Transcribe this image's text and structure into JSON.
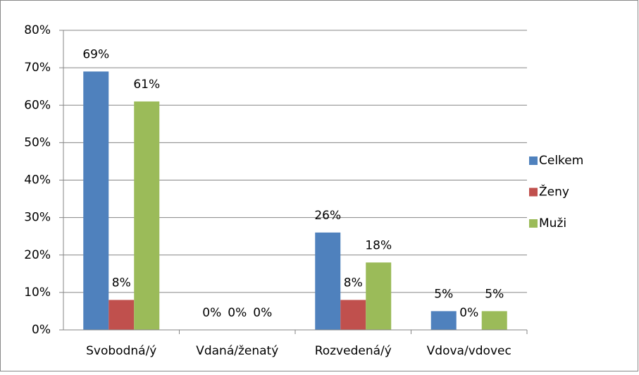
{
  "chart_data": {
    "type": "bar",
    "categories": [
      "Svobodná/ý",
      "Vdaná/ženatý",
      "Rozvedená/ý",
      "Vdova/vdovec"
    ],
    "series": [
      {
        "name": "Celkem",
        "color": "#4f81bd",
        "values": [
          69,
          0,
          26,
          5
        ],
        "value_labels": [
          "69%",
          "0%",
          "26%",
          "5%"
        ]
      },
      {
        "name": "Ženy",
        "color": "#c0504d",
        "values": [
          8,
          0,
          8,
          0
        ],
        "value_labels": [
          "8%",
          "0%",
          "8%",
          "0%"
        ]
      },
      {
        "name": "Muži",
        "color": "#9bbb59",
        "values": [
          61,
          0,
          18,
          5
        ],
        "value_labels": [
          "61%",
          "0%",
          "18%",
          "5%"
        ]
      }
    ],
    "ylim": [
      0,
      80
    ],
    "yticks": [
      {
        "value": 0,
        "label": "0%"
      },
      {
        "value": 10,
        "label": "10%"
      },
      {
        "value": 20,
        "label": "20%"
      },
      {
        "value": 30,
        "label": "30%"
      },
      {
        "value": 40,
        "label": "40%"
      },
      {
        "value": 50,
        "label": "50%"
      },
      {
        "value": 60,
        "label": "60%"
      },
      {
        "value": 70,
        "label": "70%"
      },
      {
        "value": 80,
        "label": "80%"
      }
    ],
    "grid": true,
    "legend": "right"
  }
}
